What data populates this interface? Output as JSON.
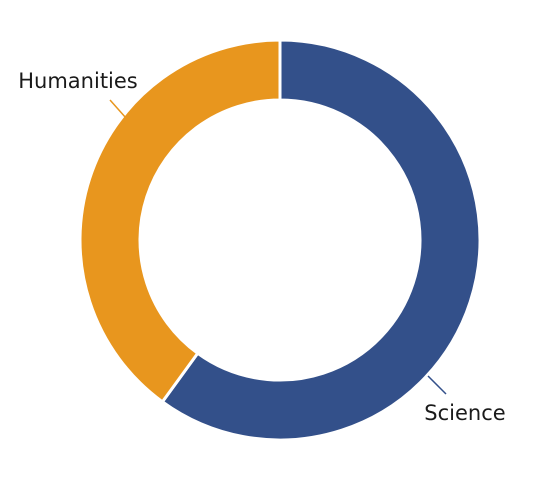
{
  "chart_data": {
    "type": "donut",
    "categories": [
      "Science",
      "Humanities"
    ],
    "values": [
      60,
      40
    ],
    "colors": [
      "#33508a",
      "#e8961e"
    ]
  }
}
